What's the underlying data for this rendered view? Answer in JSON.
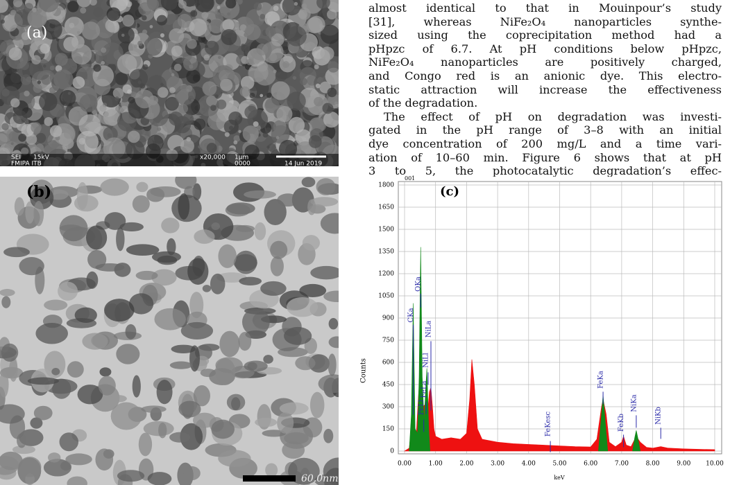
{
  "text_column": {
    "paragraphs": [
      [
        "almost identical to that in Mouinpour’s study",
        "[31], whereas NiFe₂O₄ nanoparticles synthe-",
        "sized using the coprecipitation method had a",
        "pHpzc of 6.7. At pH conditions below pHpzc,",
        "NiFe₂O₄ nanoparticles are positively charged,",
        "and Congo red is an anionic dye. This electro-",
        "static attraction will increase the effectiveness",
        "of the degradation."
      ],
      [
        "The effect of pH on degradation was investi-",
        "gated in the pH range of 3–8 with an initial",
        "dye concentration of 200 mg/L and a time vari-",
        "ation of 10–60 min. Figure 6 shows that at pH",
        "3 to 5, the photocatalytic degradation’s effec-"
      ]
    ]
  },
  "figure_a": {
    "label": "(a)",
    "info": [
      "SEI",
      "15kV",
      "FMIPA ITB",
      "x20,000",
      "1µm",
      "0000",
      "14 Jun 2019"
    ]
  },
  "figure_b": {
    "label": "(b)",
    "scale": "60.0nm"
  },
  "chart_data": {
    "type": "area",
    "label": "(c)",
    "title": "001",
    "xlabel": "keV",
    "ylabel": "Counts",
    "xlim": [
      0,
      10
    ],
    "ylim": [
      0,
      1800
    ],
    "xticks": [
      {
        "value": 0,
        "label": "0.00"
      },
      {
        "value": 1,
        "label": "1.00"
      },
      {
        "value": 2,
        "label": "2.00"
      },
      {
        "value": 3,
        "label": "3.00"
      },
      {
        "value": 4,
        "label": "4.00"
      },
      {
        "value": 5,
        "label": "5.00"
      },
      {
        "value": 6,
        "label": "6.00"
      },
      {
        "value": 7,
        "label": "7.00"
      },
      {
        "value": 8,
        "label": "8.00"
      },
      {
        "value": 9,
        "label": "9.00"
      },
      {
        "value": 10,
        "label": "10.00"
      }
    ],
    "yticks": [
      0,
      150,
      300,
      450,
      600,
      750,
      900,
      1050,
      1200,
      1350,
      1500,
      1650,
      1800
    ],
    "grid": true,
    "series": [
      {
        "color": "#ee1111",
        "x": [
          0,
          0.15,
          0.22,
          0.3,
          0.38,
          0.45,
          0.52,
          0.6,
          0.68,
          0.72,
          0.76,
          0.8,
          0.85,
          0.9,
          0.95,
          1.0,
          1.2,
          1.5,
          1.8,
          2.0,
          2.1,
          2.17,
          2.25,
          2.35,
          2.5,
          3,
          3.5,
          4,
          4.5,
          5,
          5.5,
          6,
          6.2,
          6.35,
          6.4,
          6.5,
          6.6,
          6.8,
          7.0,
          7.06,
          7.15,
          7.3,
          7.47,
          7.6,
          7.8,
          8,
          8.26,
          8.5,
          9,
          9.5,
          10
        ],
        "values": [
          0,
          20,
          150,
          80,
          120,
          380,
          560,
          300,
          320,
          430,
          300,
          400,
          430,
          300,
          150,
          100,
          80,
          90,
          80,
          120,
          350,
          620,
          450,
          150,
          80,
          60,
          50,
          45,
          40,
          35,
          30,
          28,
          80,
          300,
          350,
          250,
          60,
          30,
          60,
          100,
          40,
          30,
          100,
          60,
          25,
          20,
          30,
          20,
          15,
          12,
          10
        ]
      },
      {
        "color": "#11891a",
        "x": [
          0.15,
          0.22,
          0.28,
          0.34,
          0.42,
          0.47,
          0.52,
          0.57,
          0.63,
          0.68,
          0.72,
          0.78,
          0.82,
          1.0,
          6.25,
          6.33,
          6.4,
          6.47,
          6.55,
          6.6,
          7.35,
          7.42,
          7.47,
          7.52,
          7.6
        ],
        "values": [
          0,
          250,
          1000,
          150,
          120,
          500,
          1380,
          500,
          200,
          420,
          560,
          150,
          0,
          null,
          0,
          200,
          380,
          200,
          0,
          null,
          0,
          90,
          140,
          90,
          0
        ]
      }
    ],
    "peaks": [
      {
        "label": "CKa",
        "x": 0.28
      },
      {
        "label": "OKa",
        "x": 0.52
      },
      {
        "label": "FeLl",
        "x": 0.62
      },
      {
        "label": "FeLa",
        "x": 0.7
      },
      {
        "label": "NiLl",
        "x": 0.76
      },
      {
        "label": "NiLa",
        "x": 0.85
      },
      {
        "label": "FeKesc",
        "x": 4.7
      },
      {
        "label": "FeKa",
        "x": 6.4
      },
      {
        "label": "FeKb",
        "x": 7.06
      },
      {
        "label": "NiKa",
        "x": 7.47
      },
      {
        "label": "NiKb",
        "x": 8.26
      }
    ]
  }
}
